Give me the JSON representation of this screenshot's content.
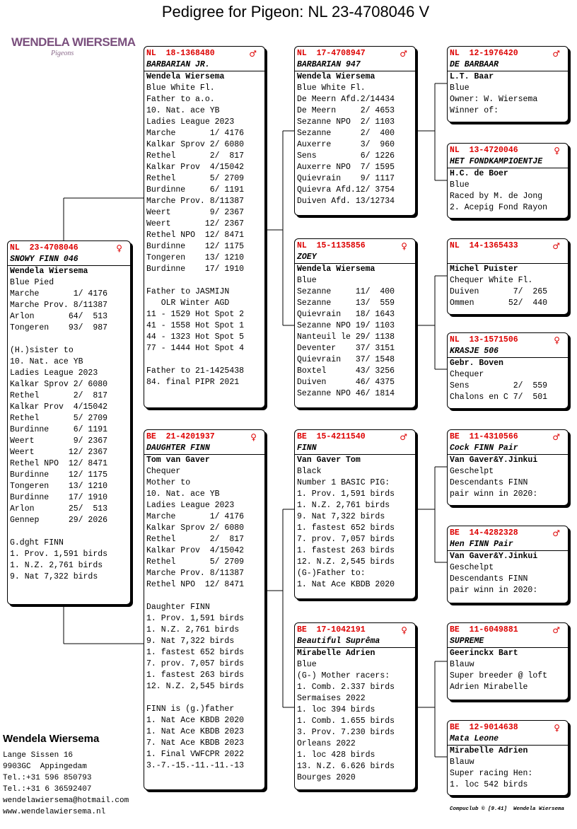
{
  "title": "Pedigree for Pigeon: NL  23-4708046 V",
  "logo": {
    "name": "WENDELA WIERSEMA",
    "tagline": "Pigeons"
  },
  "birds": [
    {
      "ring": "NL  23-4708046",
      "sex": "♀",
      "name": "SNOWY FINN 046",
      "breeder": "Wendela Wiersema",
      "blocks": [
        [
          "Blue Pied",
          "Marche       1/ 4176",
          "Marche Prov. 8/11387",
          "Arlon       64/  513",
          "Tongeren    93/  987"
        ],
        [
          "(H.)sister to",
          "10. Nat. ace YB",
          "Ladies League 2023",
          "Kalkar Sprov 2/ 6080",
          "Rethel       2/  817",
          "Kalkar Prov  4/15042",
          "Rethel       5/ 2709",
          "Burdinne     6/ 1191",
          "Weert        9/ 2367",
          "Weert       12/ 2367",
          "Rethel NPO  12/ 8471",
          "Burdinne    12/ 1175",
          "Tongeren    13/ 1210",
          "Burdinne    17/ 1910",
          "Arlon       25/  513",
          "Gennep      29/ 2026"
        ],
        [
          "G.dght FINN",
          "1. Prov. 1,591 birds",
          "1. N.Z. 2,761 birds",
          "9. Nat 7,322 birds"
        ]
      ]
    },
    {
      "ring": "NL  18-1368480",
      "sex": "♂",
      "name": "BARBARIAN JR.",
      "breeder": "Wendela Wiersema",
      "blocks": [
        [
          "Blue White Fl.",
          "Father to a.o.",
          "10. Nat. ace YB",
          "Ladies League 2023",
          "Marche       1/ 4176",
          "Kalkar Sprov 2/ 6080",
          "Rethel       2/  817",
          "Kalkar Prov  4/15042",
          "Rethel       5/ 2709",
          "Burdinne     6/ 1191",
          "Marche Prov. 8/11387",
          "Weert        9/ 2367",
          "Weert       12/ 2367",
          "Rethel NPO  12/ 8471",
          "Burdinne    12/ 1175",
          "Tongeren    13/ 1210",
          "Burdinne    17/ 1910"
        ],
        [
          "Father to JASMIJN",
          "   OLR Winter AGD",
          "11 - 1529 Hot Spot 2",
          "41 - 1558 Hot Spot 1",
          "44 - 1323 Hot Spot 5",
          "77 - 1444 Hot Spot 4"
        ],
        [
          "Father to 21-1425438",
          "84. final PIPR 2021"
        ]
      ]
    },
    {
      "ring": "BE  21-4201937",
      "sex": "♀",
      "name": "DAUGHTER FINN",
      "breeder": "Tom van Gaver",
      "blocks": [
        [
          "Chequer",
          "Mother to",
          "10. Nat. ace YB",
          "Ladies League 2023",
          "Marche       1/ 4176",
          "Kalkar Sprov 2/ 6080",
          "Rethel       2/  817",
          "Kalkar Prov  4/15042",
          "Rethel       5/ 2709",
          "Marche Prov. 8/11387",
          "Rethel NPO  12/ 8471"
        ],
        [
          "Daughter FINN",
          "1. Prov. 1,591 birds",
          "1. N.Z. 2,761 birds",
          "9. Nat 7,322 birds",
          "1. fastest 652 birds",
          "7. prov. 7,057 birds",
          "1. fastest 263 birds",
          "12. N.Z. 2,545 birds"
        ],
        [
          "FINN is (g.)father",
          "1. Nat Ace KBDB 2020",
          "1. Nat Ace KBDB 2023",
          "7. Nat Ace KBDB 2023",
          "1. Final VWFCPR 2022",
          "3.-7.-15.-11.-11.-13"
        ]
      ]
    },
    {
      "ring": "NL  17-4708947",
      "sex": "♂",
      "name": "BARBARIAN 947",
      "breeder": "Wendela Wiersema",
      "blocks": [
        [
          "Blue White Fl.",
          "De Meern Afd.2/14434",
          "De Meern     2/ 4653",
          "Sezanne NPO  2/ 1103",
          "Sezanne      2/  400",
          "Auxerre      3/  960",
          "Sens         6/ 1226",
          "Auxerre NPO  7/ 1595",
          "Quievrain    9/ 1117",
          "Quievra Afd.12/ 3754",
          "Duiven Afd. 13/12734"
        ]
      ]
    },
    {
      "ring": "NL  15-1135856",
      "sex": "♀",
      "name": "ZOEY",
      "breeder": "Wendela Wiersema",
      "blocks": [
        [
          "Blue",
          "Sezanne     11/  400",
          "Sezanne     13/  559",
          "Quievrain   18/ 1643",
          "Sezanne NPO 19/ 1103",
          "Nanteuil le 29/ 1138",
          "Deventer    37/ 3151",
          "Quievrain   37/ 1548",
          "Boxtel      43/ 3256",
          "Duiven      46/ 4375",
          "Sezanne NPO 46/ 1814"
        ]
      ]
    },
    {
      "ring": "BE  15-4211540",
      "sex": "♂",
      "name": "FINN",
      "breeder": "Van Gaver Tom",
      "blocks": [
        [
          "Black",
          "Number 1 BASIC PIG:",
          "1. Prov. 1,591 birds",
          "1. N.Z. 2,761 birds",
          "9. Nat 7,322 birds",
          "1. fastest 652 birds",
          "7. prov. 7,057 birds",
          "1. fastest 263 birds",
          "12. N.Z. 2,545 birds",
          "(G-)Father to:",
          "1. Nat Ace KBDB 2020"
        ]
      ]
    },
    {
      "ring": "BE  17-1042191",
      "sex": "♀",
      "name": "Beautiful Suprêma",
      "breeder": "Mirabelle Adrien",
      "blocks": [
        [
          "Blue",
          "(G-) Mother racers:",
          "1. Comb. 2.337 birds",
          "Sermaises 2022",
          "1. loc 394 birds",
          "1. Comb. 1.655 birds",
          "3. Prov. 7.230 birds",
          "Orleans 2022",
          "1. loc 428 birds",
          "13. N.Z. 6.626 birds",
          "Bourges 2020"
        ]
      ]
    },
    {
      "ring": "NL  12-1976420",
      "sex": "♂",
      "name": "DE BARBAAR",
      "breeder": "L.T. Baar",
      "blocks": [
        [
          "Blue",
          "Owner: W. Wiersema",
          "Winner of:"
        ]
      ]
    },
    {
      "ring": "NL  13-4720046",
      "sex": "♀",
      "name": "HET FONDKAMPIOENTJE",
      "breeder": "H.C. de Boer",
      "blocks": [
        [
          "Blue",
          "Raced by M. de Jong",
          "2. Acepig Fond Rayon"
        ]
      ]
    },
    {
      "ring": "NL  14-1365433",
      "sex": "♂",
      "breeder": "Michel Puister",
      "blocks": [
        [
          "Chequer White Fl.",
          "Duiven       7/  265",
          "Ommen       52/  440"
        ]
      ]
    },
    {
      "ring": "NL  13-1571506",
      "sex": "♀",
      "name": "KRASJE 506",
      "breeder": "Gebr. Boven",
      "blocks": [
        [
          "Chequer",
          "Sens         2/  559",
          "Chalons en C 7/  501"
        ]
      ]
    },
    {
      "ring": "BE  11-4310566",
      "sex": "♂",
      "name": "Cock FINN Pair",
      "breeder": "Van Gaver&Y.Jinkui",
      "blocks": [
        [
          "Geschelpt",
          "Descendants FINN",
          "pair winn in 2020:"
        ]
      ]
    },
    {
      "ring": "BE  14-4282328",
      "sex": "♂",
      "name": "Hen FINN Pair",
      "breeder": "Van Gaver&Y.Jinkui",
      "blocks": [
        [
          "Geschelpt",
          "Descendants FINN",
          "pair winn in 2020:"
        ]
      ]
    },
    {
      "ring": "BE  11-6049881",
      "sex": "♂",
      "name": "SUPREME",
      "breeder": "Geerinckx Bart",
      "blocks": [
        [
          "Blauw",
          "Super breeder @ loft",
          "Adrien Mirabelle"
        ]
      ]
    },
    {
      "ring": "BE  12-9014638",
      "sex": "♀",
      "name": "Mata Leone",
      "breeder": "Mirabelle Adrien",
      "blocks": [
        [
          "Blauw",
          "Super racing Hen:",
          "1. loc 542 birds"
        ]
      ]
    }
  ],
  "contact": {
    "name": "Wendela Wiersema",
    "lines": [
      "Lange Sissen 16",
      "9903GC  Appingedam",
      "Tel.:+31 596 850793",
      "Tel.:+31 6 36592407",
      "wendelawiersema@hotmail.com",
      "www.wendelawiersema.nl"
    ]
  },
  "footer": "Compuclub © [9.41]  Wendela Wiersema"
}
